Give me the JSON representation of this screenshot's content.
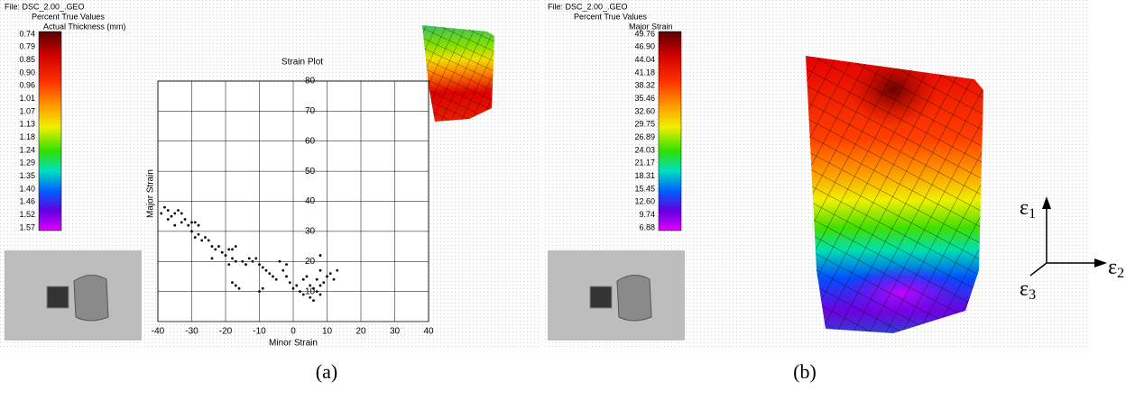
{
  "chart_data": {
    "type": "scatter",
    "title": "Strain Plot",
    "x_label": "Minor Strain",
    "y_label": "Major Strain",
    "x": [
      -39,
      -38,
      -37,
      -36,
      -35,
      -34,
      -33,
      -33,
      -32,
      -31,
      -30,
      -29,
      -28,
      -30,
      -29,
      -28,
      -27,
      -26,
      -25,
      -24,
      -23,
      -22,
      -21,
      -20,
      -19,
      -18,
      -17,
      -18,
      -17,
      -19,
      -18,
      -17,
      -16,
      -15,
      -14,
      -13,
      -12,
      -11,
      -10,
      -9,
      -8,
      -9,
      -10,
      -7,
      -6,
      -5,
      -4,
      -3,
      -2,
      -1,
      0,
      1,
      2,
      3,
      4,
      5,
      5,
      6,
      6,
      7,
      7,
      8,
      8,
      8,
      8,
      9,
      10,
      11,
      13,
      12,
      -37,
      -35,
      -24,
      -2,
      3
    ],
    "values": [
      36,
      38,
      37,
      35,
      36,
      37,
      36,
      33,
      34,
      32,
      33,
      33,
      32,
      30,
      28,
      29,
      27,
      28,
      27,
      25,
      24,
      25,
      23,
      22,
      24,
      24,
      25,
      21,
      20,
      19,
      13,
      12,
      11,
      20,
      19,
      21,
      20,
      21,
      19,
      18,
      17,
      11,
      10,
      16,
      15,
      14,
      20,
      17,
      15,
      13,
      11,
      12,
      10,
      9,
      15,
      12,
      8,
      7,
      11,
      10,
      14,
      12,
      9,
      17,
      22,
      13,
      15,
      16,
      17,
      14,
      34,
      32,
      21,
      19,
      14
    ],
    "color": "#000000",
    "xlim": [
      -40,
      40
    ],
    "ylim": [
      0,
      80
    ],
    "xticks": [
      -40,
      -30,
      -20,
      -10,
      0,
      10,
      20,
      30,
      40
    ],
    "yticks": [
      10,
      20,
      30,
      40,
      50,
      60,
      70,
      80
    ],
    "grid": true
  },
  "panel_a": {
    "file": "File: DSC_2.00_.GEO",
    "mode": "Percent True Values",
    "measure": "Actual Thickness (mm)",
    "scale_labels": [
      "0.74",
      "0.79",
      "0.85",
      "0.90",
      "0.96",
      "1.01",
      "1.07",
      "1.13",
      "1.18",
      "1.24",
      "1.29",
      "1.35",
      "1.40",
      "1.46",
      "1.52",
      "1.57"
    ],
    "caption": "(a)"
  },
  "panel_b": {
    "file": "File: DSC_2.00_.GEO",
    "mode": "Percent True Values",
    "measure": "Major Strain",
    "scale_labels": [
      "49.76",
      "46.90",
      "44.04",
      "41.18",
      "38.32",
      "35.46",
      "32.60",
      "29.75",
      "26.89",
      "24.03",
      "21.17",
      "18.31",
      "15.45",
      "12.60",
      "9.74",
      "6.88"
    ],
    "axes": [
      {
        "base": "ε",
        "sub": "1"
      },
      {
        "base": "ε",
        "sub": "2"
      },
      {
        "base": "ε",
        "sub": "3"
      }
    ],
    "caption": "(b)"
  }
}
